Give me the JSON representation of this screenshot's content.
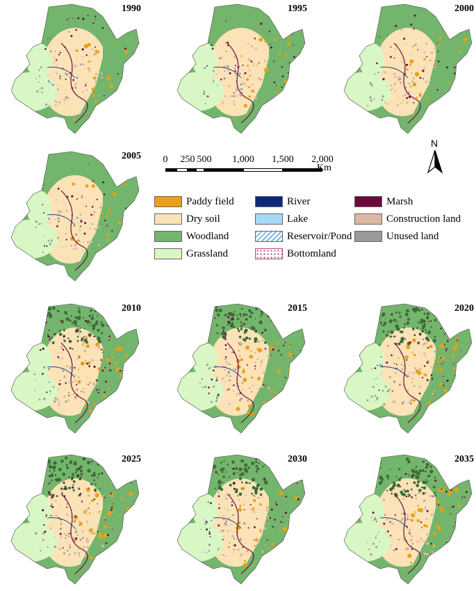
{
  "colors": {
    "paddy": "#e8a117",
    "dry": "#fbe3b7",
    "woodland": "#73b56c",
    "grassland": "#d9f7c5",
    "river": "#0c2a78",
    "lake": "#a6d9f5",
    "reservoir": "#9fcbea",
    "bottomland": "#b04a84",
    "marsh": "#6b0b3c",
    "construction": "#dcb7a4",
    "unused": "#9a9a9a"
  },
  "panels": [
    {
      "year": "1990"
    },
    {
      "year": "1995"
    },
    {
      "year": "2000"
    },
    {
      "year": "2005"
    },
    {
      "year": "2010"
    },
    {
      "year": "2015"
    },
    {
      "year": "2020"
    },
    {
      "year": "2025"
    },
    {
      "year": "2030"
    },
    {
      "year": "2035"
    }
  ],
  "scale": {
    "labels": [
      "0",
      "250",
      "500",
      "1,000",
      "1,500",
      "2,000"
    ],
    "unit": "Km"
  },
  "north": {
    "label": "N"
  },
  "legend": [
    {
      "key": "paddy",
      "label": "Paddy field"
    },
    {
      "key": "dry",
      "label": "Dry soil"
    },
    {
      "key": "woodland",
      "label": "Woodland"
    },
    {
      "key": "grassland",
      "label": "Grassland"
    },
    {
      "key": "river",
      "label": "River"
    },
    {
      "key": "lake",
      "label": "Lake"
    },
    {
      "key": "reservoir",
      "label": "Reservoir/Pond"
    },
    {
      "key": "bottomland",
      "label": "Bottomland"
    },
    {
      "key": "marsh",
      "label": "Marsh"
    },
    {
      "key": "construction",
      "label": "Construction land"
    },
    {
      "key": "unused",
      "label": "Unused land"
    }
  ]
}
